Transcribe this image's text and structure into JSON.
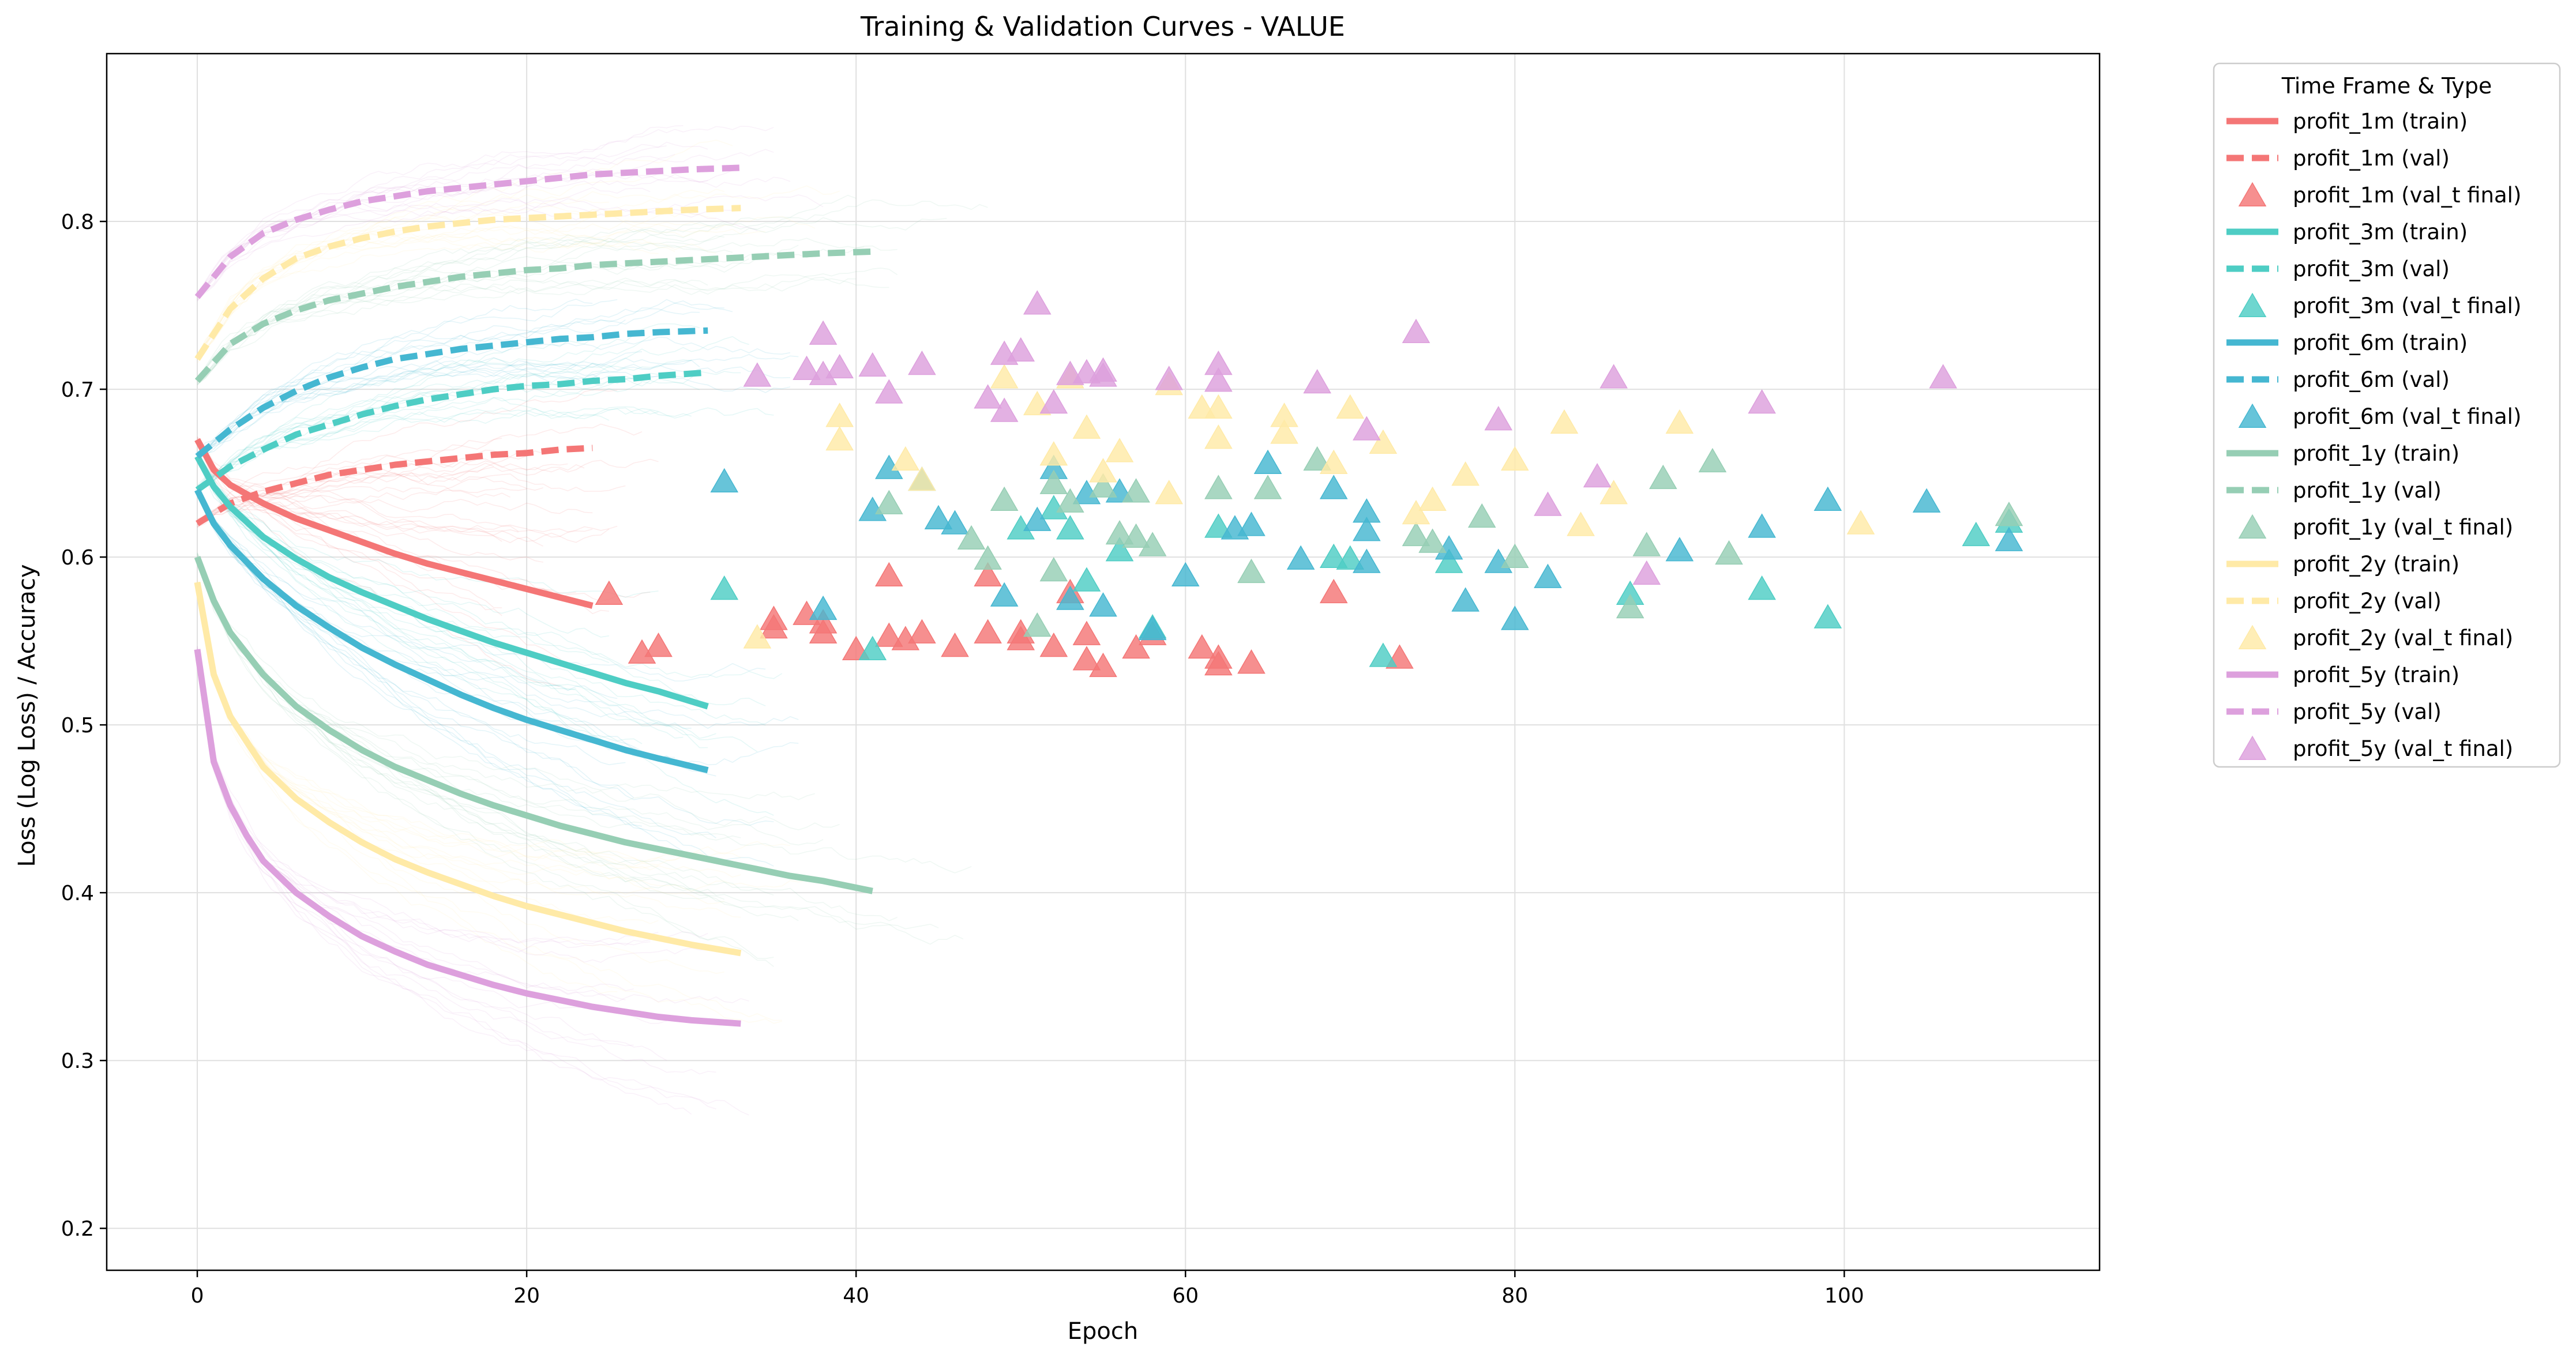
{
  "chart_data": {
    "type": "line",
    "title": "Training & Validation Curves - VALUE",
    "xlabel": "Epoch",
    "ylabel": "Loss (Log Loss) / Accuracy",
    "xlim": [
      -5.5,
      115.5
    ],
    "ylim": [
      0.175,
      0.9
    ],
    "xticks": [
      0,
      20,
      40,
      60,
      80,
      100
    ],
    "yticks": [
      0.2,
      0.3,
      0.4,
      0.5,
      0.6,
      0.7,
      0.8
    ],
    "grid": true,
    "legend": {
      "title": "Time Frame & Type",
      "placement": "outside upper right"
    },
    "series": [
      {
        "name": "profit_1m (train)",
        "kind": "train",
        "color": "#F47676",
        "x": [
          0,
          1,
          2,
          4,
          6,
          8,
          10,
          12,
          14,
          16,
          18,
          20,
          22,
          24
        ],
        "y": [
          0.67,
          0.652,
          0.643,
          0.632,
          0.623,
          0.616,
          0.609,
          0.602,
          0.596,
          0.591,
          0.586,
          0.581,
          0.576,
          0.571
        ]
      },
      {
        "name": "profit_1m (val)",
        "kind": "val",
        "color": "#F47676",
        "x": [
          0,
          2,
          4,
          6,
          8,
          10,
          12,
          14,
          16,
          18,
          20,
          22,
          24
        ],
        "y": [
          0.62,
          0.632,
          0.639,
          0.644,
          0.649,
          0.652,
          0.655,
          0.657,
          0.659,
          0.661,
          0.662,
          0.664,
          0.665
        ]
      },
      {
        "name": "profit_1m (val_t final)",
        "kind": "scatter",
        "color": "#F47676",
        "x": [
          25,
          27,
          28,
          35,
          35,
          37,
          38,
          38,
          40,
          42,
          42,
          43,
          44,
          46,
          48,
          48,
          50,
          50,
          52,
          53,
          54,
          54,
          55,
          57,
          58,
          61,
          62,
          62,
          64,
          69,
          73
        ],
        "y": [
          0.577,
          0.542,
          0.546,
          0.562,
          0.557,
          0.565,
          0.56,
          0.554,
          0.544,
          0.588,
          0.552,
          0.55,
          0.554,
          0.546,
          0.588,
          0.554,
          0.554,
          0.55,
          0.546,
          0.578,
          0.553,
          0.538,
          0.534,
          0.545,
          0.553,
          0.545,
          0.539,
          0.535,
          0.536,
          0.578,
          0.539
        ]
      },
      {
        "name": "profit_3m (train)",
        "kind": "train",
        "color": "#4ECDC4",
        "x": [
          0,
          1,
          2,
          4,
          6,
          8,
          10,
          12,
          14,
          16,
          18,
          20,
          22,
          24,
          26,
          28,
          31
        ],
        "y": [
          0.66,
          0.642,
          0.63,
          0.612,
          0.599,
          0.588,
          0.579,
          0.571,
          0.563,
          0.556,
          0.549,
          0.543,
          0.537,
          0.531,
          0.525,
          0.52,
          0.511
        ]
      },
      {
        "name": "profit_3m (val)",
        "kind": "val",
        "color": "#4ECDC4",
        "x": [
          0,
          2,
          4,
          6,
          8,
          10,
          12,
          14,
          16,
          18,
          20,
          22,
          24,
          26,
          28,
          31
        ],
        "y": [
          0.64,
          0.654,
          0.664,
          0.673,
          0.679,
          0.685,
          0.69,
          0.694,
          0.697,
          0.7,
          0.702,
          0.703,
          0.705,
          0.706,
          0.708,
          0.71
        ]
      },
      {
        "name": "profit_3m (val_t final)",
        "kind": "scatter",
        "color": "#4ECDC4",
        "x": [
          32,
          41,
          50,
          52,
          53,
          54,
          56,
          58,
          62,
          69,
          70,
          72,
          76,
          87,
          95,
          99,
          108,
          110
        ],
        "y": [
          0.58,
          0.544,
          0.616,
          0.628,
          0.616,
          0.585,
          0.603,
          0.557,
          0.617,
          0.599,
          0.598,
          0.54,
          0.596,
          0.577,
          0.58,
          0.563,
          0.612,
          0.62
        ]
      },
      {
        "name": "profit_6m (train)",
        "kind": "train",
        "color": "#45B7D1",
        "x": [
          0,
          1,
          2,
          4,
          6,
          8,
          10,
          12,
          14,
          16,
          18,
          20,
          22,
          24,
          26,
          28,
          31
        ],
        "y": [
          0.64,
          0.62,
          0.607,
          0.587,
          0.571,
          0.558,
          0.546,
          0.536,
          0.527,
          0.518,
          0.51,
          0.503,
          0.497,
          0.491,
          0.485,
          0.48,
          0.473
        ]
      },
      {
        "name": "profit_6m (val)",
        "kind": "val",
        "color": "#45B7D1",
        "x": [
          0,
          2,
          4,
          6,
          8,
          10,
          12,
          14,
          16,
          18,
          20,
          22,
          24,
          26,
          28,
          31
        ],
        "y": [
          0.66,
          0.676,
          0.689,
          0.699,
          0.707,
          0.713,
          0.718,
          0.721,
          0.724,
          0.726,
          0.728,
          0.73,
          0.731,
          0.733,
          0.734,
          0.735
        ]
      },
      {
        "name": "profit_6m (val_t final)",
        "kind": "scatter",
        "color": "#45B7D1",
        "x": [
          32,
          38,
          41,
          42,
          44,
          45,
          46,
          49,
          51,
          52,
          53,
          54,
          55,
          56,
          58,
          60,
          63,
          64,
          65,
          67,
          69,
          71,
          71,
          71,
          76,
          77,
          79,
          80,
          82,
          90,
          95,
          99,
          105,
          110
        ],
        "y": [
          0.644,
          0.568,
          0.627,
          0.652,
          0.645,
          0.622,
          0.619,
          0.576,
          0.621,
          0.652,
          0.574,
          0.637,
          0.57,
          0.638,
          0.556,
          0.588,
          0.616,
          0.618,
          0.655,
          0.598,
          0.64,
          0.626,
          0.615,
          0.596,
          0.604,
          0.573,
          0.596,
          0.562,
          0.587,
          0.603,
          0.617,
          0.633,
          0.632,
          0.609
        ]
      },
      {
        "name": "profit_1y (train)",
        "kind": "train",
        "color": "#96CEB4",
        "x": [
          0,
          1,
          2,
          4,
          6,
          8,
          10,
          12,
          14,
          16,
          18,
          20,
          22,
          24,
          26,
          28,
          30,
          32,
          34,
          36,
          38,
          41
        ],
        "y": [
          0.6,
          0.574,
          0.555,
          0.53,
          0.511,
          0.497,
          0.485,
          0.475,
          0.467,
          0.459,
          0.452,
          0.446,
          0.44,
          0.435,
          0.43,
          0.426,
          0.422,
          0.418,
          0.414,
          0.41,
          0.407,
          0.401
        ]
      },
      {
        "name": "profit_1y (val)",
        "kind": "val",
        "color": "#96CEB4",
        "x": [
          0,
          2,
          4,
          6,
          8,
          10,
          12,
          14,
          16,
          18,
          20,
          22,
          24,
          26,
          28,
          30,
          32,
          34,
          36,
          38,
          41
        ],
        "y": [
          0.705,
          0.727,
          0.739,
          0.747,
          0.753,
          0.757,
          0.761,
          0.764,
          0.767,
          0.769,
          0.771,
          0.772,
          0.774,
          0.775,
          0.776,
          0.777,
          0.778,
          0.779,
          0.78,
          0.781,
          0.782
        ]
      },
      {
        "name": "profit_1y (val_t final)",
        "kind": "scatter",
        "color": "#96CEB4",
        "x": [
          42,
          47,
          48,
          49,
          51,
          52,
          52,
          53,
          55,
          56,
          57,
          57,
          58,
          62,
          64,
          65,
          68,
          74,
          75,
          78,
          80,
          87,
          88,
          89,
          92,
          93,
          110
        ],
        "y": [
          0.631,
          0.61,
          0.598,
          0.633,
          0.558,
          0.643,
          0.591,
          0.632,
          0.641,
          0.613,
          0.611,
          0.638,
          0.606,
          0.64,
          0.59,
          0.64,
          0.657,
          0.612,
          0.608,
          0.623,
          0.599,
          0.569,
          0.606,
          0.646,
          0.656,
          0.601,
          0.624
        ]
      },
      {
        "name": "profit_2y (train)",
        "kind": "train",
        "color": "#FFEAA7",
        "x": [
          0,
          1,
          2,
          4,
          6,
          8,
          10,
          12,
          14,
          16,
          18,
          20,
          22,
          24,
          26,
          28,
          30,
          33
        ],
        "y": [
          0.585,
          0.53,
          0.505,
          0.475,
          0.456,
          0.442,
          0.43,
          0.42,
          0.412,
          0.405,
          0.398,
          0.392,
          0.387,
          0.382,
          0.377,
          0.373,
          0.369,
          0.364
        ]
      },
      {
        "name": "profit_2y (val)",
        "kind": "val",
        "color": "#FFEAA7",
        "x": [
          0,
          2,
          4,
          6,
          8,
          10,
          12,
          14,
          16,
          18,
          20,
          22,
          24,
          26,
          28,
          30,
          33
        ],
        "y": [
          0.718,
          0.748,
          0.766,
          0.778,
          0.785,
          0.79,
          0.794,
          0.797,
          0.799,
          0.801,
          0.802,
          0.803,
          0.804,
          0.805,
          0.806,
          0.807,
          0.808
        ]
      },
      {
        "name": "profit_2y (val_t final)",
        "kind": "scatter",
        "color": "#FFEAA7",
        "x": [
          34,
          39,
          39,
          43,
          44,
          49,
          51,
          52,
          53,
          54,
          55,
          56,
          59,
          59,
          61,
          62,
          62,
          66,
          66,
          69,
          70,
          72,
          74,
          75,
          77,
          80,
          83,
          84,
          86,
          90,
          101
        ],
        "y": [
          0.551,
          0.683,
          0.669,
          0.657,
          0.645,
          0.706,
          0.69,
          0.66,
          0.706,
          0.676,
          0.65,
          0.662,
          0.637,
          0.702,
          0.688,
          0.688,
          0.67,
          0.673,
          0.683,
          0.655,
          0.688,
          0.667,
          0.625,
          0.633,
          0.648,
          0.657,
          0.679,
          0.618,
          0.637,
          0.679,
          0.619
        ]
      },
      {
        "name": "profit_5y (train)",
        "kind": "train",
        "color": "#DDA0DD",
        "x": [
          0,
          1,
          2,
          3,
          4,
          6,
          8,
          10,
          12,
          14,
          16,
          18,
          20,
          22,
          24,
          26,
          28,
          30,
          33
        ],
        "y": [
          0.545,
          0.478,
          0.452,
          0.434,
          0.419,
          0.4,
          0.386,
          0.374,
          0.365,
          0.357,
          0.351,
          0.345,
          0.34,
          0.336,
          0.332,
          0.329,
          0.326,
          0.324,
          0.322
        ]
      },
      {
        "name": "profit_5y (val)",
        "kind": "val",
        "color": "#DDA0DD",
        "x": [
          0,
          2,
          4,
          6,
          8,
          10,
          12,
          14,
          16,
          18,
          20,
          22,
          24,
          26,
          28,
          30,
          33
        ],
        "y": [
          0.755,
          0.779,
          0.793,
          0.801,
          0.807,
          0.812,
          0.815,
          0.818,
          0.82,
          0.822,
          0.824,
          0.826,
          0.828,
          0.829,
          0.83,
          0.831,
          0.832
        ]
      },
      {
        "name": "profit_5y (val_t final)",
        "kind": "scatter",
        "color": "#DDA0DD",
        "x": [
          34,
          37,
          38,
          38,
          39,
          41,
          42,
          44,
          48,
          49,
          49,
          50,
          51,
          52,
          53,
          54,
          55,
          55,
          59,
          62,
          62,
          68,
          71,
          74,
          79,
          82,
          85,
          86,
          88,
          95,
          106
        ],
        "y": [
          0.707,
          0.711,
          0.708,
          0.732,
          0.712,
          0.713,
          0.697,
          0.714,
          0.694,
          0.72,
          0.686,
          0.722,
          0.75,
          0.691,
          0.708,
          0.709,
          0.707,
          0.71,
          0.705,
          0.714,
          0.704,
          0.703,
          0.675,
          0.733,
          0.681,
          0.63,
          0.647,
          0.706,
          0.589,
          0.691,
          0.706
        ]
      }
    ]
  }
}
